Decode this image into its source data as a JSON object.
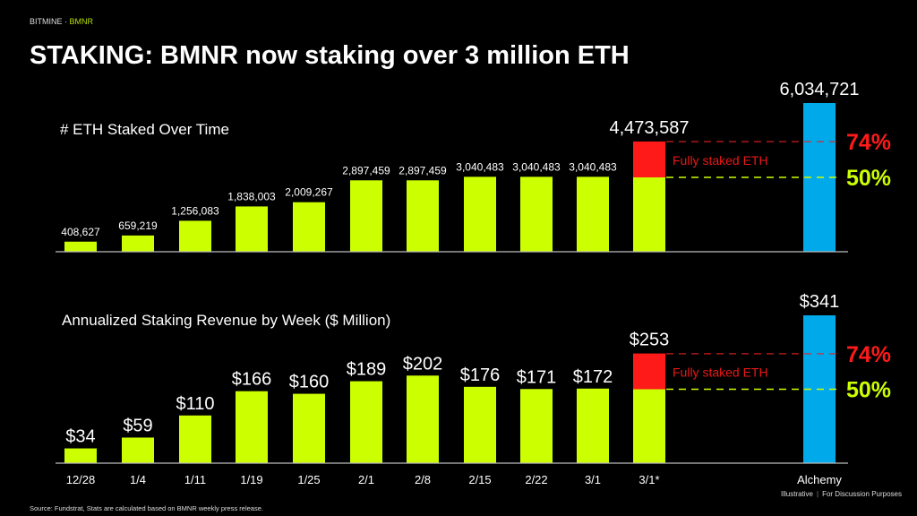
{
  "header": {
    "brand": "BITMINE",
    "separator": " · ",
    "ticker": "BMNR",
    "title": "STAKING: BMNR now staking over 3 million ETH"
  },
  "colors": {
    "bar": "#ccff00",
    "incremental": "#ff1a1a",
    "benchmark": "#00aaea",
    "fifty_line": "#ccff00",
    "seventy_four_line": "#e02020"
  },
  "chart_data": [
    {
      "type": "bar",
      "title": "# ETH Staked Over Time",
      "categories": [
        "12/28",
        "1/4",
        "1/11",
        "1/19",
        "1/25",
        "2/1",
        "2/8",
        "2/15",
        "2/22",
        "3/1",
        "3/1*",
        "Alchemy"
      ],
      "values": [
        408627,
        659219,
        1256083,
        1838003,
        2009267,
        2897459,
        2897459,
        3040483,
        3040483,
        3040483,
        4473587,
        6034721
      ],
      "labels": [
        "408,627",
        "659,219",
        "1,256,083",
        "1,838,003",
        "2,009,267",
        "2,897,459",
        "2,897,459",
        "3,040,483",
        "3,040,483",
        "3,040,483",
        "4,473,587",
        "6,034,721"
      ],
      "reference_lines": [
        {
          "label": "74%",
          "fraction_of_benchmark": 0.74
        },
        {
          "label": "50%",
          "fraction_of_benchmark": 0.5
        }
      ],
      "annotation": "Fully staked ETH",
      "ylim": [
        0,
        6034721
      ]
    },
    {
      "type": "bar",
      "title": "Annualized Staking Revenue by Week ($ Million)",
      "categories": [
        "12/28",
        "1/4",
        "1/11",
        "1/19",
        "1/25",
        "2/1",
        "2/8",
        "2/15",
        "2/22",
        "3/1",
        "3/1*",
        "Alchemy"
      ],
      "values": [
        34,
        59,
        110,
        166,
        160,
        189,
        202,
        176,
        171,
        172,
        253,
        341
      ],
      "labels": [
        "$34",
        "$59",
        "$110",
        "$166",
        "$160",
        "$189",
        "$202",
        "$176",
        "$171",
        "$172",
        "$253",
        "$341"
      ],
      "reference_lines": [
        {
          "label": "74%",
          "fraction_of_benchmark": 0.74
        },
        {
          "label": "50%",
          "fraction_of_benchmark": 0.5
        }
      ],
      "annotation": "Fully staked ETH",
      "ylim": [
        0,
        341
      ]
    }
  ],
  "footer": {
    "note_left": "Illustrative",
    "note_sep": "|",
    "note_right": "For Discussion Purposes",
    "source": "Source: Fundstrat, Stats are calculated based on BMNR weekly press release."
  }
}
